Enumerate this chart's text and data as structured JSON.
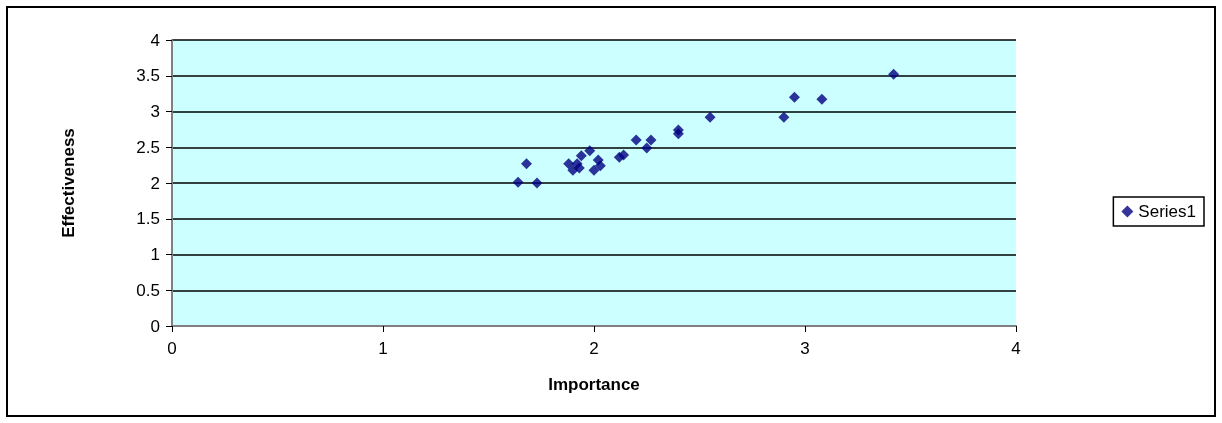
{
  "chart_data": {
    "type": "scatter",
    "xlabel": "Importance",
    "ylabel": "Effectiveness",
    "x": [
      1.64,
      1.68,
      1.73,
      1.88,
      1.9,
      1.92,
      1.93,
      1.94,
      1.98,
      2.0,
      2.02,
      2.03,
      2.12,
      2.14,
      2.2,
      2.25,
      2.27,
      2.4,
      2.4,
      2.55,
      2.9,
      2.95,
      3.08,
      3.42
    ],
    "series": [
      {
        "name": "Series1",
        "color": "#000080",
        "values": [
          2.01,
          2.27,
          2.0,
          2.27,
          2.18,
          2.27,
          2.21,
          2.38,
          2.45,
          2.18,
          2.32,
          2.24,
          2.36,
          2.39,
          2.6,
          2.49,
          2.6,
          2.74,
          2.69,
          2.92,
          2.92,
          3.2,
          3.17,
          3.52
        ]
      }
    ],
    "xlim": [
      0,
      4
    ],
    "xticks": [
      0,
      1,
      2,
      3,
      4
    ],
    "ylim": [
      0,
      4
    ],
    "yticks": [
      0,
      0.5,
      1,
      1.5,
      2,
      2.5,
      3,
      3.5,
      4
    ],
    "grid": "y",
    "legend": "right",
    "marker": "diamond"
  }
}
